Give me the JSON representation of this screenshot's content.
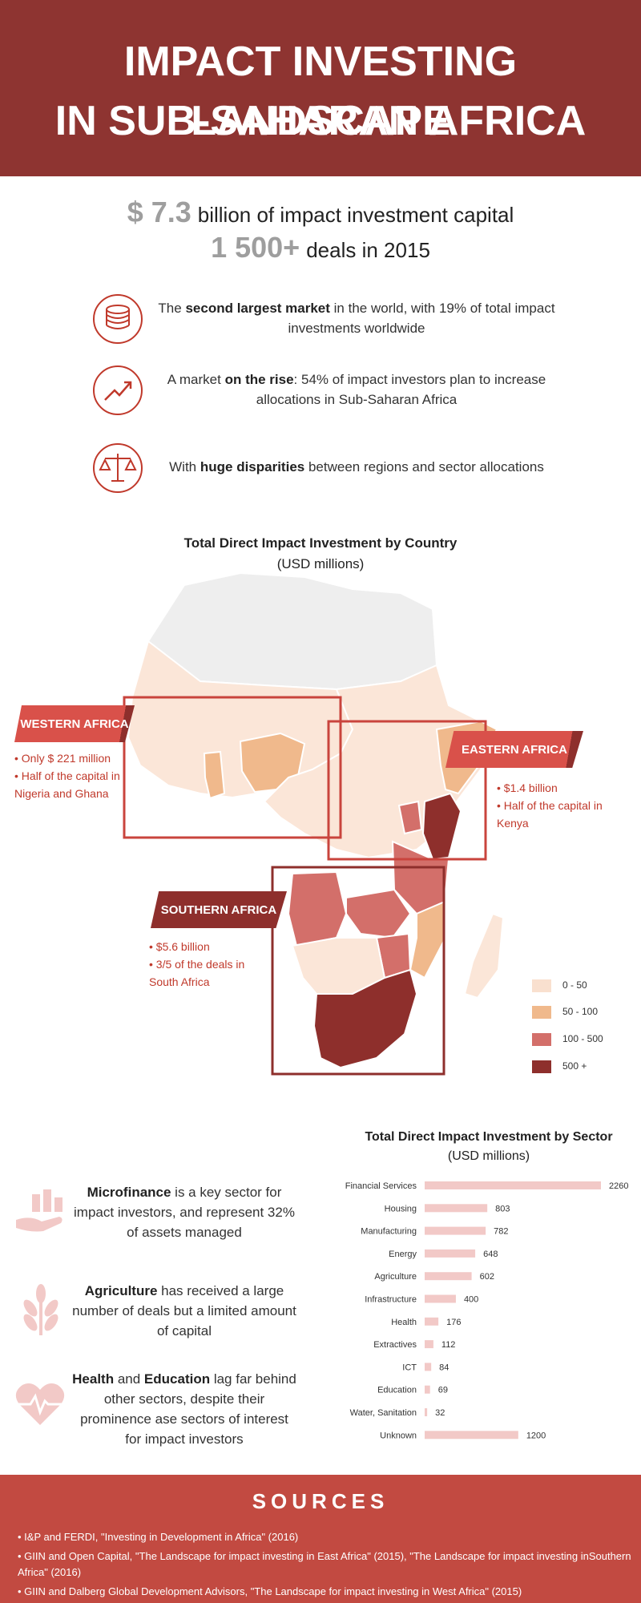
{
  "header": {
    "line1": "IMPACT INVESTING LANDSCAPE",
    "line2": "IN SUB-SAHARAN AFRICA"
  },
  "stats": [
    {
      "big": "$ 7.3",
      "text": "billion of impact investment capital"
    },
    {
      "big": "1 500+",
      "text": "deals in 2015"
    }
  ],
  "facts": [
    {
      "icon": "coins-icon",
      "pre": "The ",
      "bold": "second largest market",
      "post": " in the world, with 19% of total impact investments worldwide"
    },
    {
      "icon": "rising-chart-icon",
      "pre": "A market ",
      "bold": "on the rise",
      "post": ": 54% of impact investors plan to increase allocations in Sub-Saharan Africa"
    },
    {
      "icon": "balance-scale-icon",
      "pre": "With ",
      "bold": "huge disparities",
      "post": " between regions and sector allocations"
    }
  ],
  "map": {
    "title": "Total Direct Impact Investment by Country",
    "subtitle": "(USD millions)",
    "regions": [
      {
        "label": "WESTERN AFRICA",
        "notes": [
          "• Only $ 221 million",
          "• Half of the capital in",
          "Nigeria and Ghana"
        ]
      },
      {
        "label": "EASTERN AFRICA",
        "notes": [
          "• $1.4 billion",
          "• Half of the capital in",
          "Kenya"
        ]
      },
      {
        "label": "SOUTHERN AFRICA",
        "notes": [
          "• $5.6 billion",
          "•  3/5 of the deals in",
          "South Africa"
        ]
      }
    ],
    "legend": [
      {
        "label": "0 - 50",
        "color": "#f9e0cf"
      },
      {
        "label": "50 - 100",
        "color": "#f0b98c"
      },
      {
        "label": "100 - 500",
        "color": "#d36f6a"
      },
      {
        "label": "500 +",
        "color": "#8e2f2c"
      }
    ]
  },
  "sector_texts": [
    {
      "icon": "hand-coins-icon",
      "b1": "Microfinance",
      "t1": " is a key sector for impact investors, and represent 32% of assets managed"
    },
    {
      "icon": "wheat-icon",
      "b1": "Agriculture",
      "t1": " has received a large number of deals but a limited amount of capital"
    },
    {
      "icon": "heart-pulse-icon",
      "b1": "Health",
      "t1": " and ",
      "b2": "Education",
      "t2": " lag far behind other sectors, despite their prominence ase sectors of interest for impact investors"
    }
  ],
  "chart_data": {
    "type": "bar",
    "orientation": "horizontal",
    "title": "Total Direct Impact Investment by Sector",
    "subtitle": "(USD millions)",
    "categories": [
      "Financial Services",
      "Housing",
      "Manufacturing",
      "Energy",
      "Agriculture",
      "Infrastructure",
      "Health",
      "Extractives",
      "ICT",
      "Education",
      "Water, Sanitation",
      "Unknown"
    ],
    "values": [
      2260,
      803,
      782,
      648,
      602,
      400,
      176,
      112,
      84,
      69,
      32,
      1200
    ],
    "bar_color": "#f2c9c7",
    "grid": false
  },
  "sources": {
    "heading": "SOURCES",
    "items": [
      "• I&P and FERDI, \"Investing in Development in Africa\" (2016)",
      "• GIIN and Open Capital,  \"The Landscape for impact investing in East Africa\" (2015), \"The Landscape for impact investing inSouthern Africa\" (2016)",
      "• GIIN and Dalberg Global Development Advisors, \"The Landscape for impact investing in West Africa\" (2015)"
    ]
  }
}
